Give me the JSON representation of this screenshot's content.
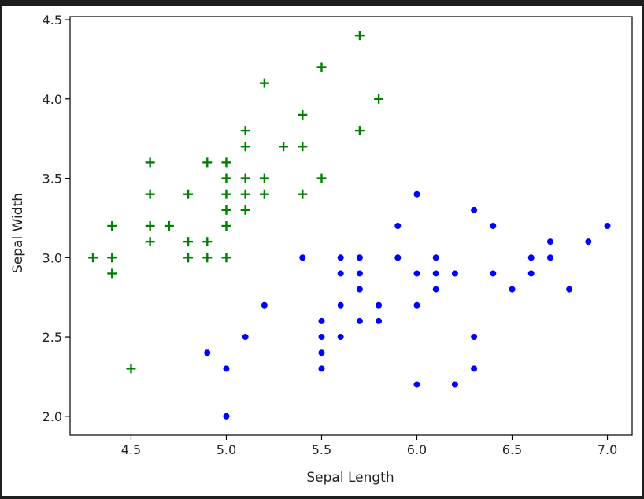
{
  "chart_data": {
    "type": "scatter",
    "title": "",
    "xlabel": "Sepal Length",
    "ylabel": "Sepal Width",
    "xlim": [
      4.18,
      7.13
    ],
    "ylim": [
      1.88,
      4.52
    ],
    "xticks": [
      "4.5",
      "5.0",
      "5.5",
      "6.0",
      "6.5",
      "7.0"
    ],
    "yticks": [
      "2.0",
      "2.5",
      "3.0",
      "3.5",
      "4.0",
      "4.5"
    ],
    "grid": false,
    "series": [
      {
        "marker": "plus",
        "color": "#008000",
        "points": [
          [
            4.3,
            3.0
          ],
          [
            4.4,
            3.2
          ],
          [
            4.4,
            3.0
          ],
          [
            4.4,
            2.9
          ],
          [
            4.5,
            2.3
          ],
          [
            4.6,
            3.6
          ],
          [
            4.6,
            3.4
          ],
          [
            4.6,
            3.2
          ],
          [
            4.6,
            3.1
          ],
          [
            4.7,
            3.2
          ],
          [
            4.8,
            3.4
          ],
          [
            4.8,
            3.1
          ],
          [
            4.8,
            3.0
          ],
          [
            4.9,
            3.6
          ],
          [
            4.9,
            3.1
          ],
          [
            4.9,
            3.0
          ],
          [
            5.0,
            3.6
          ],
          [
            5.0,
            3.5
          ],
          [
            5.0,
            3.4
          ],
          [
            5.0,
            3.3
          ],
          [
            5.0,
            3.2
          ],
          [
            5.0,
            3.0
          ],
          [
            5.1,
            3.8
          ],
          [
            5.1,
            3.7
          ],
          [
            5.1,
            3.5
          ],
          [
            5.1,
            3.4
          ],
          [
            5.1,
            3.3
          ],
          [
            5.2,
            4.1
          ],
          [
            5.2,
            3.5
          ],
          [
            5.2,
            3.4
          ],
          [
            5.3,
            3.7
          ],
          [
            5.4,
            3.9
          ],
          [
            5.4,
            3.7
          ],
          [
            5.4,
            3.4
          ],
          [
            5.5,
            4.2
          ],
          [
            5.5,
            3.5
          ],
          [
            5.7,
            4.4
          ],
          [
            5.7,
            3.8
          ],
          [
            5.8,
            4.0
          ]
        ]
      },
      {
        "marker": "dot",
        "color": "#0000ff",
        "points": [
          [
            4.9,
            2.4
          ],
          [
            5.0,
            2.3
          ],
          [
            5.0,
            2.0
          ],
          [
            5.1,
            2.5
          ],
          [
            5.2,
            2.7
          ],
          [
            5.4,
            3.0
          ],
          [
            5.5,
            2.6
          ],
          [
            5.5,
            2.5
          ],
          [
            5.5,
            2.4
          ],
          [
            5.5,
            2.3
          ],
          [
            5.6,
            3.0
          ],
          [
            5.6,
            2.9
          ],
          [
            5.6,
            2.7
          ],
          [
            5.6,
            2.5
          ],
          [
            5.7,
            3.0
          ],
          [
            5.7,
            2.9
          ],
          [
            5.7,
            2.8
          ],
          [
            5.7,
            2.6
          ],
          [
            5.8,
            2.7
          ],
          [
            5.8,
            2.6
          ],
          [
            5.9,
            3.2
          ],
          [
            5.9,
            3.0
          ],
          [
            6.0,
            3.4
          ],
          [
            6.0,
            2.9
          ],
          [
            6.0,
            2.7
          ],
          [
            6.0,
            2.2
          ],
          [
            6.1,
            3.0
          ],
          [
            6.1,
            2.9
          ],
          [
            6.1,
            2.8
          ],
          [
            6.2,
            2.9
          ],
          [
            6.2,
            2.2
          ],
          [
            6.3,
            3.3
          ],
          [
            6.3,
            2.5
          ],
          [
            6.3,
            2.3
          ],
          [
            6.4,
            3.2
          ],
          [
            6.4,
            2.9
          ],
          [
            6.5,
            2.8
          ],
          [
            6.6,
            3.0
          ],
          [
            6.6,
            2.9
          ],
          [
            6.7,
            3.1
          ],
          [
            6.7,
            3.0
          ],
          [
            6.8,
            2.8
          ],
          [
            6.9,
            3.1
          ],
          [
            7.0,
            3.2
          ]
        ]
      }
    ]
  }
}
